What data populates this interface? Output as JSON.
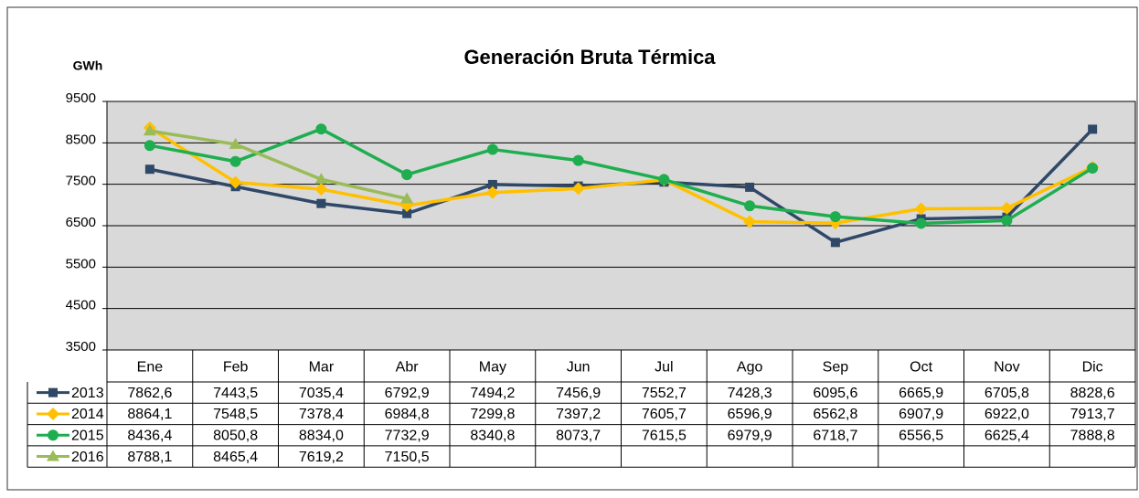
{
  "chart_data": {
    "type": "line",
    "title": "Generación Bruta Térmica",
    "y_label": "GWh",
    "categories": [
      "Ene",
      "Feb",
      "Mar",
      "Abr",
      "May",
      "Jun",
      "Jul",
      "Ago",
      "Sep",
      "Oct",
      "Nov",
      "Dic"
    ],
    "ylim": [
      3500,
      9500
    ],
    "yticks": [
      3500,
      4500,
      5500,
      6500,
      7500,
      8500,
      9500
    ],
    "grid": true,
    "series": [
      {
        "name": "2013",
        "color": "#2f4868",
        "marker": "square",
        "values": [
          7862.6,
          7443.5,
          7035.4,
          6792.9,
          7494.2,
          7456.9,
          7552.7,
          7428.3,
          6095.6,
          6665.9,
          6705.8,
          8828.6
        ],
        "value_labels": [
          "7862,6",
          "7443,5",
          "7035,4",
          "6792,9",
          "7494,2",
          "7456,9",
          "7552,7",
          "7428,3",
          "6095,6",
          "6665,9",
          "6705,8",
          "8828,6"
        ]
      },
      {
        "name": "2014",
        "color": "#ffc000",
        "marker": "diamond",
        "values": [
          8864.1,
          7548.5,
          7378.4,
          6984.8,
          7299.8,
          7397.2,
          7605.7,
          6596.9,
          6562.8,
          6907.9,
          6922.0,
          7913.7
        ],
        "value_labels": [
          "8864,1",
          "7548,5",
          "7378,4",
          "6984,8",
          "7299,8",
          "7397,2",
          "7605,7",
          "6596,9",
          "6562,8",
          "6907,9",
          "6922,0",
          "7913,7"
        ]
      },
      {
        "name": "2015",
        "color": "#1fae4f",
        "marker": "circle",
        "values": [
          8436.4,
          8050.8,
          8834.0,
          7732.9,
          8340.8,
          8073.7,
          7615.5,
          6979.9,
          6718.7,
          6556.5,
          6625.4,
          7888.8
        ],
        "value_labels": [
          "8436,4",
          "8050,8",
          "8834,0",
          "7732,9",
          "8340,8",
          "8073,7",
          "7615,5",
          "6979,9",
          "6718,7",
          "6556,5",
          "6625,4",
          "7888,8"
        ]
      },
      {
        "name": "2016",
        "color": "#9bbb59",
        "marker": "triangle",
        "values": [
          8788.1,
          8465.4,
          7619.2,
          7150.5,
          null,
          null,
          null,
          null,
          null,
          null,
          null,
          null
        ],
        "value_labels": [
          "8788,1",
          "8465,4",
          "7619,2",
          "7150,5",
          null,
          null,
          null,
          null,
          null,
          null,
          null,
          null
        ]
      }
    ]
  }
}
